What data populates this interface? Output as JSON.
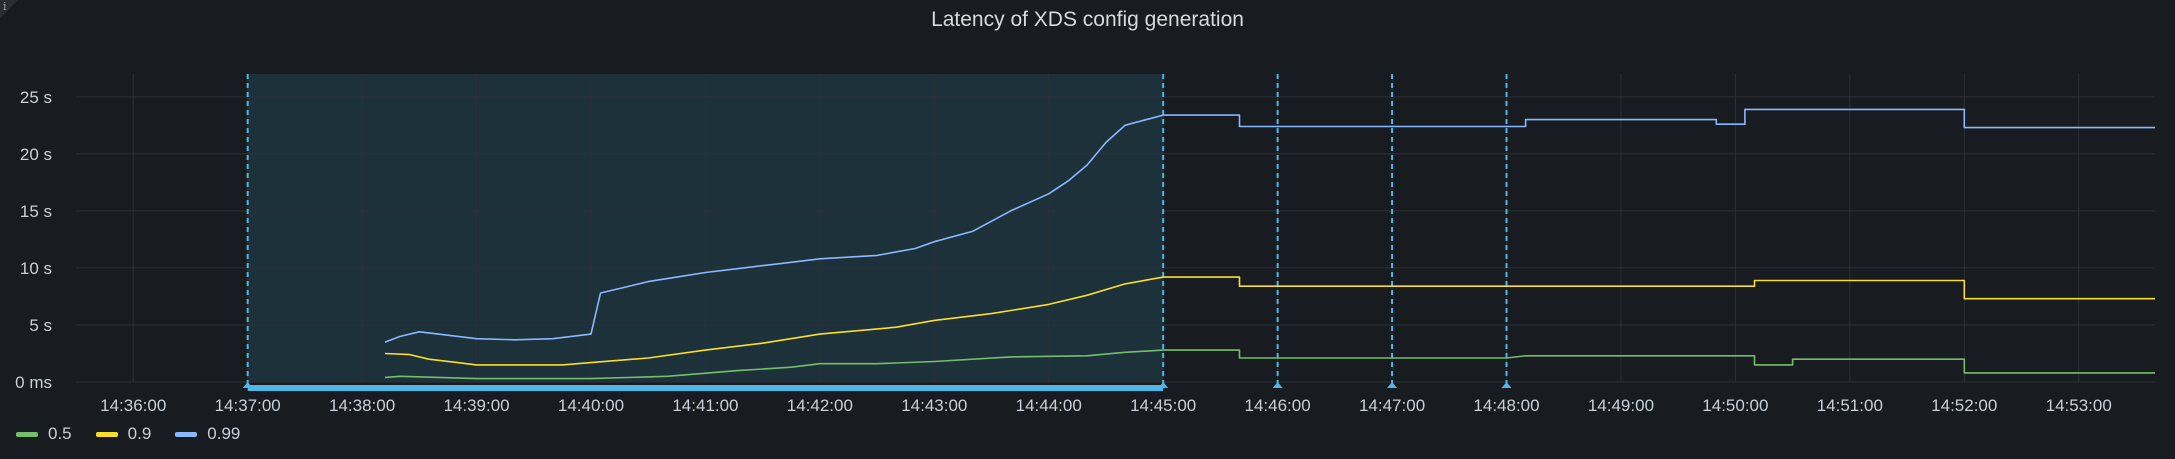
{
  "panel": {
    "info_icon": "info-icon",
    "title": "Latency of XDS config generation"
  },
  "colors": {
    "background": "#181b1f",
    "grid": "#2c3037",
    "axis_text": "#c7d0d9",
    "annotation": "#4fb6e8",
    "selection_fill": "#1f3a45"
  },
  "chart_data": {
    "type": "line",
    "title": "Latency of XDS config generation",
    "xlabel": "",
    "ylabel": "",
    "x_ticks": [
      "14:36:00",
      "14:37:00",
      "14:38:00",
      "14:39:00",
      "14:40:00",
      "14:41:00",
      "14:42:00",
      "14:43:00",
      "14:44:00",
      "14:45:00",
      "14:46:00",
      "14:47:00",
      "14:48:00",
      "14:49:00",
      "14:50:00",
      "14:51:00",
      "14:52:00",
      "14:53:00"
    ],
    "x_range": [
      "14:35:30",
      "14:53:40"
    ],
    "y_ticks": [
      "0 ms",
      "5 s",
      "10 s",
      "15 s",
      "20 s",
      "25 s"
    ],
    "ylim": [
      0,
      27
    ],
    "y_unit": "s",
    "grid": true,
    "legend_position": "bottom-left",
    "annotations": [
      "14:37:00",
      "14:45:00",
      "14:46:00",
      "14:47:00",
      "14:48:00"
    ],
    "highlighted_region": [
      "14:37:00",
      "14:45:00"
    ],
    "series": [
      {
        "name": "0.5",
        "color": "#73bf69",
        "points": [
          [
            "14:38:12",
            0.4
          ],
          [
            "14:38:20",
            0.5
          ],
          [
            "14:38:40",
            0.4
          ],
          [
            "14:39:00",
            0.3
          ],
          [
            "14:40:00",
            0.3
          ],
          [
            "14:40:40",
            0.5
          ],
          [
            "14:41:17",
            1.0
          ],
          [
            "14:41:45",
            1.3
          ],
          [
            "14:42:00",
            1.6
          ],
          [
            "14:42:30",
            1.6
          ],
          [
            "14:43:00",
            1.8
          ],
          [
            "14:43:40",
            2.2
          ],
          [
            "14:44:20",
            2.3
          ],
          [
            "14:44:40",
            2.6
          ],
          [
            "14:45:00",
            2.8
          ],
          [
            "14:45:40",
            2.8
          ],
          [
            "14:45:40",
            2.1
          ],
          [
            "14:48:00",
            2.1
          ],
          [
            "14:48:10",
            2.3
          ],
          [
            "14:50:10",
            2.3
          ],
          [
            "14:50:10",
            1.5
          ],
          [
            "14:50:30",
            1.5
          ],
          [
            "14:50:30",
            2.0
          ],
          [
            "14:52:00",
            2.0
          ],
          [
            "14:52:00",
            0.8
          ],
          [
            "14:53:40",
            0.8
          ]
        ]
      },
      {
        "name": "0.9",
        "color": "#fade2a",
        "points": [
          [
            "14:38:12",
            2.5
          ],
          [
            "14:38:25",
            2.4
          ],
          [
            "14:38:35",
            2.0
          ],
          [
            "14:38:50",
            1.7
          ],
          [
            "14:39:00",
            1.5
          ],
          [
            "14:39:45",
            1.5
          ],
          [
            "14:40:00",
            1.7
          ],
          [
            "14:40:30",
            2.1
          ],
          [
            "14:41:00",
            2.8
          ],
          [
            "14:41:30",
            3.4
          ],
          [
            "14:42:00",
            4.2
          ],
          [
            "14:42:40",
            4.8
          ],
          [
            "14:43:00",
            5.4
          ],
          [
            "14:43:30",
            6.0
          ],
          [
            "14:44:00",
            6.8
          ],
          [
            "14:44:20",
            7.6
          ],
          [
            "14:44:40",
            8.6
          ],
          [
            "14:45:00",
            9.2
          ],
          [
            "14:45:40",
            9.2
          ],
          [
            "14:45:40",
            8.4
          ],
          [
            "14:50:10",
            8.4
          ],
          [
            "14:50:10",
            8.9
          ],
          [
            "14:52:00",
            8.9
          ],
          [
            "14:52:00",
            7.3
          ],
          [
            "14:53:40",
            7.3
          ]
        ]
      },
      {
        "name": "0.99",
        "color": "#8ab8ff",
        "points": [
          [
            "14:38:12",
            3.5
          ],
          [
            "14:38:20",
            4.0
          ],
          [
            "14:38:30",
            4.4
          ],
          [
            "14:38:40",
            4.2
          ],
          [
            "14:39:00",
            3.8
          ],
          [
            "14:39:20",
            3.7
          ],
          [
            "14:39:40",
            3.8
          ],
          [
            "14:40:00",
            4.2
          ],
          [
            "14:40:05",
            7.8
          ],
          [
            "14:40:15",
            8.2
          ],
          [
            "14:40:30",
            8.8
          ],
          [
            "14:40:45",
            9.2
          ],
          [
            "14:41:00",
            9.6
          ],
          [
            "14:41:20",
            10.0
          ],
          [
            "14:41:40",
            10.4
          ],
          [
            "14:42:00",
            10.8
          ],
          [
            "14:42:30",
            11.1
          ],
          [
            "14:42:50",
            11.7
          ],
          [
            "14:43:00",
            12.3
          ],
          [
            "14:43:20",
            13.2
          ],
          [
            "14:43:40",
            15.0
          ],
          [
            "14:44:00",
            16.5
          ],
          [
            "14:44:10",
            17.6
          ],
          [
            "14:44:20",
            19.0
          ],
          [
            "14:44:30",
            21.0
          ],
          [
            "14:44:40",
            22.5
          ],
          [
            "14:45:00",
            23.4
          ],
          [
            "14:45:40",
            23.4
          ],
          [
            "14:45:40",
            22.4
          ],
          [
            "14:48:10",
            22.4
          ],
          [
            "14:48:10",
            23.0
          ],
          [
            "14:49:50",
            23.0
          ],
          [
            "14:49:50",
            22.6
          ],
          [
            "14:50:05",
            22.6
          ],
          [
            "14:50:05",
            23.9
          ],
          [
            "14:52:00",
            23.9
          ],
          [
            "14:52:00",
            22.3
          ],
          [
            "14:53:40",
            22.3
          ]
        ]
      }
    ]
  },
  "legend": {
    "items": [
      {
        "label": "0.5",
        "color": "#73bf69"
      },
      {
        "label": "0.9",
        "color": "#fade2a"
      },
      {
        "label": "0.99",
        "color": "#8ab8ff"
      }
    ]
  }
}
